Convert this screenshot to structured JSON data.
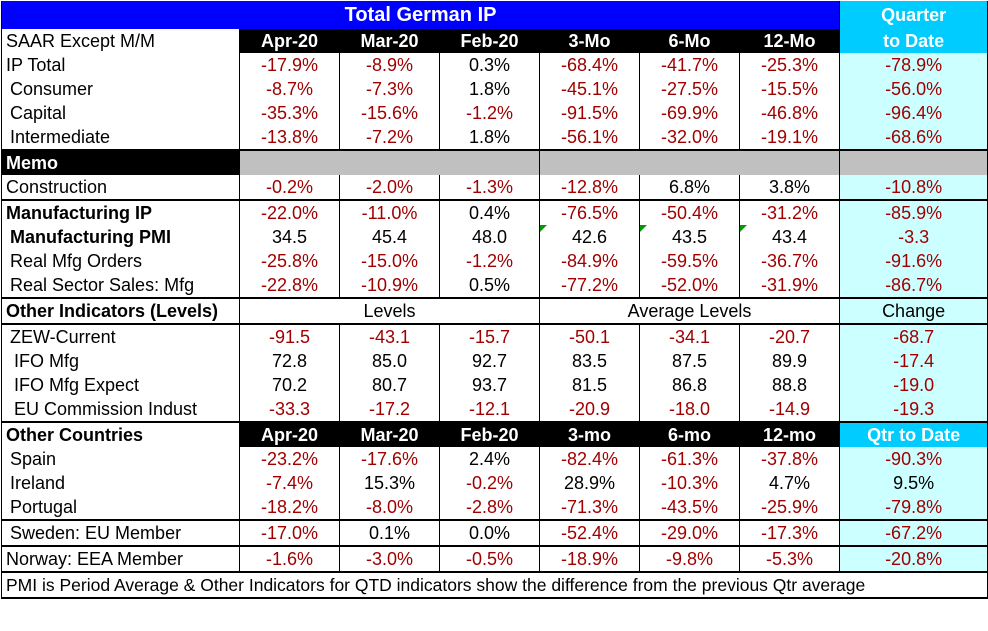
{
  "title": "Total German IP",
  "quarter_header": [
    "Quarter",
    "to Date"
  ],
  "header": {
    "label": "SAAR Except M/M",
    "cols": [
      "Apr-20",
      "Mar-20",
      "Feb-20",
      "3-Mo",
      "6-Mo",
      "12-Mo"
    ]
  },
  "ip_rows": [
    {
      "label": "IP Total",
      "values": [
        "-17.9%",
        "-8.9%",
        "0.3%",
        "-68.4%",
        "-41.7%",
        "-25.3%"
      ],
      "qtd": "-78.9%"
    },
    {
      "label": "Consumer",
      "values": [
        "-8.7%",
        "-7.3%",
        "1.8%",
        "-45.1%",
        "-27.5%",
        "-15.5%"
      ],
      "qtd": "-56.0%"
    },
    {
      "label": "Capital",
      "values": [
        "-35.3%",
        "-15.6%",
        "-1.2%",
        "-91.5%",
        "-69.9%",
        "-46.8%"
      ],
      "qtd": "-96.4%"
    },
    {
      "label": "Intermediate",
      "values": [
        "-13.8%",
        "-7.2%",
        "1.8%",
        "-56.1%",
        "-32.0%",
        "-19.1%"
      ],
      "qtd": "-68.6%"
    }
  ],
  "memo": {
    "label": "Memo",
    "row": {
      "label": "Construction",
      "values": [
        "-0.2%",
        "-2.0%",
        "-1.3%",
        "-12.8%",
        "6.8%",
        "3.8%"
      ],
      "qtd": "-10.8%"
    }
  },
  "mfg_rows": [
    {
      "label": "Manufacturing IP",
      "values": [
        "-22.0%",
        "-11.0%",
        "0.4%",
        "-76.5%",
        "-50.4%",
        "-31.2%"
      ],
      "qtd": "-85.9%"
    },
    {
      "label": "Manufacturing PMI",
      "values": [
        "34.5",
        "45.4",
        "48.0",
        "42.6",
        "43.5",
        "43.4"
      ],
      "qtd": "-3.3"
    },
    {
      "label": "Real Mfg Orders",
      "values": [
        "-25.8%",
        "-15.0%",
        "-1.2%",
        "-84.9%",
        "-59.5%",
        "-36.7%"
      ],
      "qtd": "-91.6%"
    },
    {
      "label": "Real Sector Sales: Mfg",
      "values": [
        "-22.8%",
        "-10.9%",
        "0.5%",
        "-77.2%",
        "-52.0%",
        "-31.9%"
      ],
      "qtd": "-86.7%"
    }
  ],
  "other_indicators": {
    "label": "Other Indicators (Levels)",
    "levels": "Levels",
    "avg_levels": "Average Levels",
    "change": "Change",
    "rows": [
      {
        "label": "ZEW-Current",
        "values": [
          "-91.5",
          "-43.1",
          "-15.7",
          "-50.1",
          "-34.1",
          "-20.7"
        ],
        "qtd": "-68.7"
      },
      {
        "label": "IFO Mfg",
        "values": [
          "72.8",
          "85.0",
          "92.7",
          "83.5",
          "87.5",
          "89.9"
        ],
        "qtd": "-17.4"
      },
      {
        "label": "IFO Mfg Expect",
        "values": [
          "70.2",
          "80.7",
          "93.7",
          "81.5",
          "86.8",
          "88.8"
        ],
        "qtd": "-19.0"
      },
      {
        "label": "EU Commission Indust",
        "values": [
          "-33.3",
          "-17.2",
          "-12.1",
          "-20.9",
          "-18.0",
          "-14.9"
        ],
        "qtd": "-19.3"
      }
    ]
  },
  "other_countries": {
    "label": "Other Countries",
    "cols": [
      "Apr-20",
      "Mar-20",
      "Feb-20",
      "3-mo",
      "6-mo",
      "12-mo"
    ],
    "qtd": "Qtr to Date",
    "rows": [
      {
        "label": "Spain",
        "values": [
          "-23.2%",
          "-17.6%",
          "2.4%",
          "-82.4%",
          "-61.3%",
          "-37.8%"
        ],
        "qtd": "-90.3%"
      },
      {
        "label": "Ireland",
        "values": [
          "-7.4%",
          "15.3%",
          "-0.2%",
          "28.9%",
          "-10.3%",
          "4.7%"
        ],
        "qtd": "9.5%"
      },
      {
        "label": "Portugal",
        "values": [
          "-18.2%",
          "-8.0%",
          "-2.8%",
          "-71.3%",
          "-43.5%",
          "-25.9%"
        ],
        "qtd": "-79.8%"
      }
    ]
  },
  "sweden": {
    "label": "Sweden: EU Member",
    "values": [
      "-17.0%",
      "0.1%",
      "0.0%",
      "-52.4%",
      "-29.0%",
      "-17.3%"
    ],
    "qtd": "-67.2%"
  },
  "norway": {
    "label": "Norway: EEA Member",
    "values": [
      "-1.6%",
      "-3.0%",
      "-0.5%",
      "-18.9%",
      "-9.8%",
      "-5.3%"
    ],
    "qtd": "-20.8%"
  },
  "footnote": "PMI is Period Average & Other Indicators for QTD indicators show the difference from the previous Qtr average",
  "colors": {
    "title_bg": "#0000ff",
    "qtd_header_bg": "#00ccff",
    "qtd_col_bg": "#ccffff",
    "negative": "#a00000",
    "memo_gray": "#c0c0c0"
  }
}
